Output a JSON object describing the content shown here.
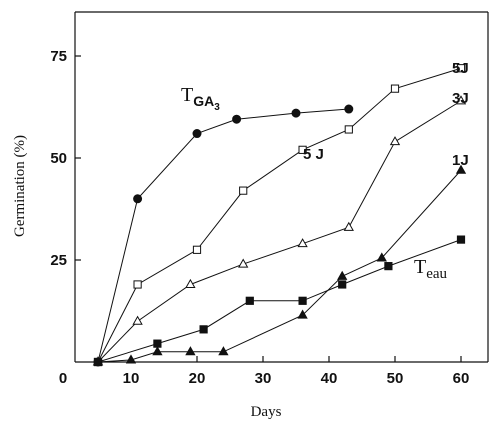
{
  "chart_data": {
    "type": "line",
    "xlabel": "Days",
    "ylabel": "Germination (%)",
    "xlim": [
      0,
      65
    ],
    "ylim": [
      0,
      80
    ],
    "x_ticks": [
      "0",
      "10",
      "20",
      "30",
      "40",
      "50",
      "60"
    ],
    "y_ticks": [
      "25",
      "50",
      "75"
    ],
    "grid": false,
    "series": [
      {
        "marker": "filled-circle",
        "x": [
          5,
          11,
          20,
          26,
          35,
          43
        ],
        "y": [
          0,
          40,
          56,
          59.5,
          61,
          62
        ]
      },
      {
        "name": "5J",
        "marker": "open-square",
        "x": [
          5,
          11,
          20,
          27,
          36,
          43,
          50,
          60
        ],
        "y": [
          0,
          19,
          27.5,
          42,
          52,
          57,
          67,
          72
        ]
      },
      {
        "name": "3J",
        "marker": "open-triangle",
        "x": [
          5,
          11,
          19,
          27,
          36,
          43,
          50,
          60
        ],
        "y": [
          0,
          10,
          19,
          24,
          29,
          33,
          54,
          64
        ]
      },
      {
        "name": "1J",
        "marker": "filled-triangle",
        "x": [
          5,
          10,
          14,
          19,
          24,
          36,
          42,
          48,
          60
        ],
        "y": [
          0,
          0.5,
          2.5,
          2.5,
          2.5,
          11.5,
          21,
          25.5,
          47
        ]
      },
      {
        "marker": "filled-square",
        "x": [
          5,
          14,
          21,
          28,
          36,
          42,
          49,
          60
        ],
        "y": [
          0,
          4.5,
          8,
          15,
          15,
          19,
          23.5,
          30
        ]
      }
    ],
    "annotations": [
      {
        "label_main": "T",
        "label_sub": "GA",
        "label_subsub": "3"
      },
      {
        "text": "5 J"
      },
      {
        "label_main": "T",
        "label_sub": "eau"
      }
    ]
  }
}
